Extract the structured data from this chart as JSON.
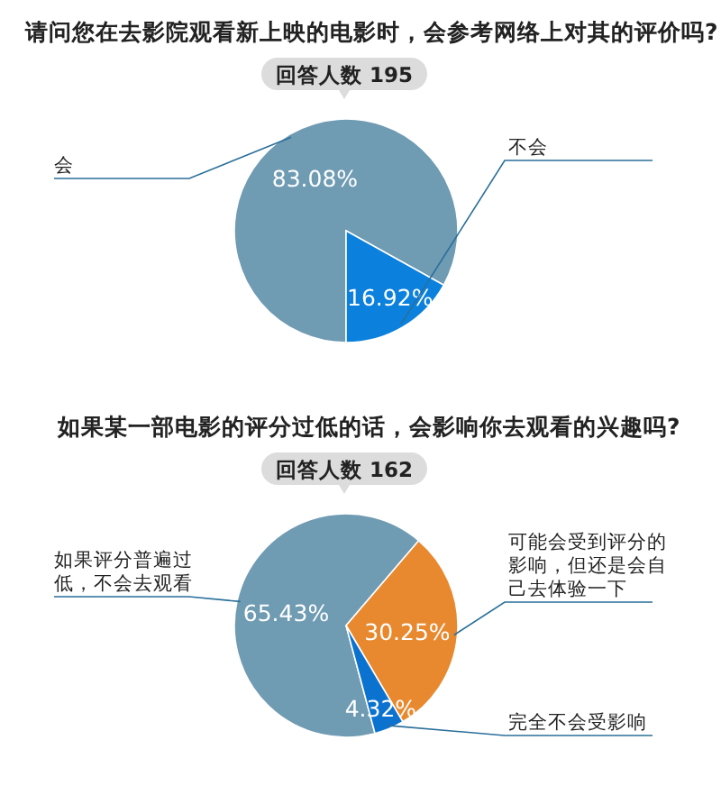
{
  "chart_data": [
    {
      "type": "pie",
      "title": "请问您在去影院观看新上映的电影时，会参考网络上对其的评价吗?",
      "subtitle": "回答人数 195",
      "categories": [
        "会",
        "不会"
      ],
      "values": [
        83.08,
        16.92
      ],
      "colors": [
        "#6f9bb3",
        "#0b80dc"
      ],
      "value_labels": [
        "83.08%",
        "16.92%"
      ]
    },
    {
      "type": "pie",
      "title": "如果某一部电影的评分过低的话，会影响你去观看的兴趣吗?",
      "subtitle": "回答人数 162",
      "categories": [
        "如果评分普遍过低，不会去观看",
        "可能会受到评分的影响，但还是会自己去体验一下",
        "完全不会受影响"
      ],
      "values": [
        65.43,
        30.25,
        4.32
      ],
      "colors": [
        "#6f9bb3",
        "#e8892f",
        "#0b72d0"
      ],
      "value_labels": [
        "65.43%",
        "30.25%",
        "4.32%"
      ]
    }
  ]
}
